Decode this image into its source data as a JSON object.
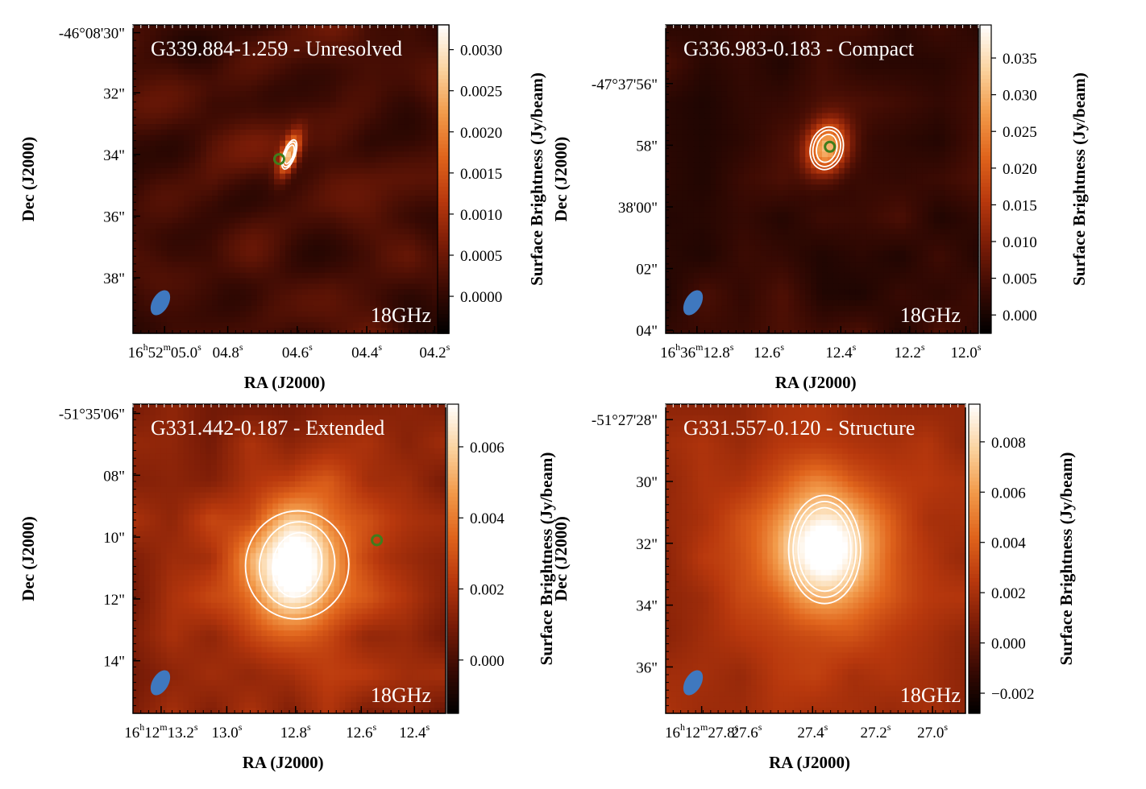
{
  "figure": {
    "xlabel": "RA (J2000)",
    "ylabel": "Dec (J2000)",
    "cbar_label": "Surface Brightness (Jy/beam)",
    "freq_label": "18GHz"
  },
  "colors": {
    "background": "#2a0802",
    "contour": "#ffffff",
    "marker": "#3f7d1c",
    "beam": "#3f78bf",
    "colormap": [
      "#000000",
      "#3a0a03",
      "#7a1c07",
      "#b8380d",
      "#e0641c",
      "#f29a4a",
      "#fbd3a0",
      "#ffffff"
    ]
  },
  "chart_data": [
    {
      "type": "heatmap",
      "title": "G339.884-1.259 - Unresolved",
      "x_ticks": [
        {
          "label": "16h52m05.0s",
          "h": "16",
          "m": "52",
          "s": "05.0",
          "frac": 0.1
        },
        {
          "label": "04.8s",
          "h": "",
          "m": "",
          "s": "04.8",
          "frac": 0.3
        },
        {
          "label": "04.6s",
          "h": "",
          "m": "",
          "s": "04.6",
          "frac": 0.52
        },
        {
          "label": "04.4s",
          "h": "",
          "m": "",
          "s": "04.4",
          "frac": 0.74
        },
        {
          "label": "04.2s",
          "h": "",
          "m": "",
          "s": "04.2",
          "frac": 0.955
        }
      ],
      "y_ticks": [
        {
          "label": "-46°08'30\"",
          "frac": 0.025
        },
        {
          "label": "32\"",
          "frac": 0.22
        },
        {
          "label": "34\"",
          "frac": 0.42
        },
        {
          "label": "36\"",
          "frac": 0.62
        },
        {
          "label": "38\"",
          "frac": 0.82
        }
      ],
      "cbar_ticks": [
        "0.0030",
        "0.0025",
        "0.0020",
        "0.0015",
        "0.0010",
        "0.0005",
        "0.0000"
      ],
      "cbar_range": [
        -0.00045,
        0.0033
      ],
      "cbar_values": [
        0.003,
        0.0025,
        0.002,
        0.0015,
        0.001,
        0.0005,
        0.0
      ],
      "source": {
        "x": 0.495,
        "y": 0.42,
        "sx": 0.018,
        "sy": 0.05,
        "rot": 20,
        "peak": 0.0033
      },
      "contours": [
        {
          "sx": 0.018,
          "sy": 0.05
        },
        {
          "sx": 0.016,
          "sy": 0.042
        },
        {
          "sx": 0.012,
          "sy": 0.032
        }
      ],
      "marker": {
        "x": 0.463,
        "y": 0.435
      },
      "noise": 0.0004,
      "base": 0.0002,
      "streaks": true,
      "seed": 11
    },
    {
      "type": "heatmap",
      "title": "G336.983-0.183 - Compact",
      "x_ticks": [
        {
          "label": "16h36m12.8s",
          "h": "16",
          "m": "36",
          "s": "12.8",
          "frac": 0.1
        },
        {
          "label": "12.6s",
          "h": "",
          "m": "",
          "s": "12.6",
          "frac": 0.33
        },
        {
          "label": "12.4s",
          "h": "",
          "m": "",
          "s": "12.4",
          "frac": 0.56
        },
        {
          "label": "12.2s",
          "h": "",
          "m": "",
          "s": "12.2",
          "frac": 0.78
        },
        {
          "label": "12.0s",
          "h": "",
          "m": "",
          "s": "12.0",
          "frac": 0.96
        }
      ],
      "y_ticks": [
        {
          "label": "-47°37'56\"",
          "frac": 0.19
        },
        {
          "label": "58\"",
          "frac": 0.39
        },
        {
          "label": "38'00\"",
          "frac": 0.59
        },
        {
          "label": "02\"",
          "frac": 0.79
        },
        {
          "label": "04\"",
          "frac": 0.99
        }
      ],
      "cbar_ticks": [
        "0.035",
        "0.030",
        "0.025",
        "0.020",
        "0.015",
        "0.010",
        "0.005",
        "0.000"
      ],
      "cbar_range": [
        -0.0025,
        0.0395
      ],
      "cbar_values": [
        0.035,
        0.03,
        0.025,
        0.02,
        0.015,
        0.01,
        0.005,
        0.0
      ],
      "source": {
        "x": 0.515,
        "y": 0.4,
        "sx": 0.045,
        "sy": 0.062,
        "rot": 15,
        "peak": 0.039
      },
      "contours": [
        {
          "sx": 0.052,
          "sy": 0.07
        },
        {
          "sx": 0.043,
          "sy": 0.06
        },
        {
          "sx": 0.032,
          "sy": 0.046
        }
      ],
      "marker": {
        "x": 0.525,
        "y": 0.395
      },
      "noise": 0.0025,
      "base": 0.003,
      "streaks": false,
      "seed": 23
    },
    {
      "type": "heatmap",
      "title": "G331.442-0.187 - Extended",
      "x_ticks": [
        {
          "label": "16h12m13.2s",
          "h": "16",
          "m": "12",
          "s": "13.2",
          "frac": 0.09
        },
        {
          "label": "13.0s",
          "h": "",
          "m": "",
          "s": "13.0",
          "frac": 0.3
        },
        {
          "label": "12.8s",
          "h": "",
          "m": "",
          "s": "12.8",
          "frac": 0.52
        },
        {
          "label": "12.6s",
          "h": "",
          "m": "",
          "s": "12.6",
          "frac": 0.73
        },
        {
          "label": "12.4s",
          "h": "",
          "m": "",
          "s": "12.4",
          "frac": 0.9
        }
      ],
      "y_ticks": [
        {
          "label": "-51°35'06\"",
          "frac": 0.03
        },
        {
          "label": "08\"",
          "frac": 0.23
        },
        {
          "label": "10\"",
          "frac": 0.43
        },
        {
          "label": "12\"",
          "frac": 0.63
        },
        {
          "label": "14\"",
          "frac": 0.83
        }
      ],
      "cbar_ticks": [
        "0.006",
        "0.004",
        "0.002",
        "0.000"
      ],
      "cbar_range": [
        -0.0015,
        0.0072
      ],
      "cbar_values": [
        0.006,
        0.004,
        0.002,
        0.0
      ],
      "source": {
        "x": 0.525,
        "y": 0.52,
        "sx": 0.1,
        "sy": 0.13,
        "rot": 10,
        "peak": 0.0072
      },
      "contours": [
        {
          "sx": 0.165,
          "sy": 0.175
        },
        {
          "sx": 0.12,
          "sy": 0.14
        },
        {
          "sx": 0.078,
          "sy": 0.105
        }
      ],
      "marker": {
        "x": 0.78,
        "y": 0.44
      },
      "noise": 0.0007,
      "base": 0.0012,
      "streaks": false,
      "seed": 37
    },
    {
      "type": "heatmap",
      "title": "G331.557-0.120 - Structure",
      "x_ticks": [
        {
          "label": "16h12m27.8s",
          "h": "16",
          "m": "12",
          "s": "27.8",
          "frac": 0.12
        },
        {
          "label": "27.6s",
          "h": "",
          "m": "",
          "s": "27.6",
          "frac": 0.27
        },
        {
          "label": "27.4s",
          "h": "",
          "m": "",
          "s": "27.4",
          "frac": 0.49
        },
        {
          "label": "27.2s",
          "h": "",
          "m": "",
          "s": "27.2",
          "frac": 0.7
        },
        {
          "label": "27.0s",
          "h": "",
          "m": "",
          "s": "27.0",
          "frac": 0.89
        }
      ],
      "y_ticks": [
        {
          "label": "-51°27'28\"",
          "frac": 0.05
        },
        {
          "label": "30\"",
          "frac": 0.25
        },
        {
          "label": "32\"",
          "frac": 0.45
        },
        {
          "label": "34\"",
          "frac": 0.65
        },
        {
          "label": "36\"",
          "frac": 0.85
        }
      ],
      "cbar_ticks": [
        "0.008",
        "0.006",
        "0.004",
        "0.002",
        "0.000",
        "−0.002"
      ],
      "cbar_range": [
        -0.0028,
        0.0095
      ],
      "cbar_values": [
        0.008,
        0.006,
        0.004,
        0.002,
        0.0,
        -0.002
      ],
      "source": {
        "x": 0.53,
        "y": 0.47,
        "sx": 0.115,
        "sy": 0.13,
        "rot": 0,
        "peak": 0.0095
      },
      "contours": [
        {
          "sx": 0.12,
          "sy": 0.175
        },
        {
          "sx": 0.105,
          "sy": 0.155
        },
        {
          "sx": 0.088,
          "sy": 0.135
        }
      ],
      "marker": null,
      "noise": 0.0006,
      "base": 0.0015,
      "streaks": false,
      "seed": 53
    }
  ]
}
